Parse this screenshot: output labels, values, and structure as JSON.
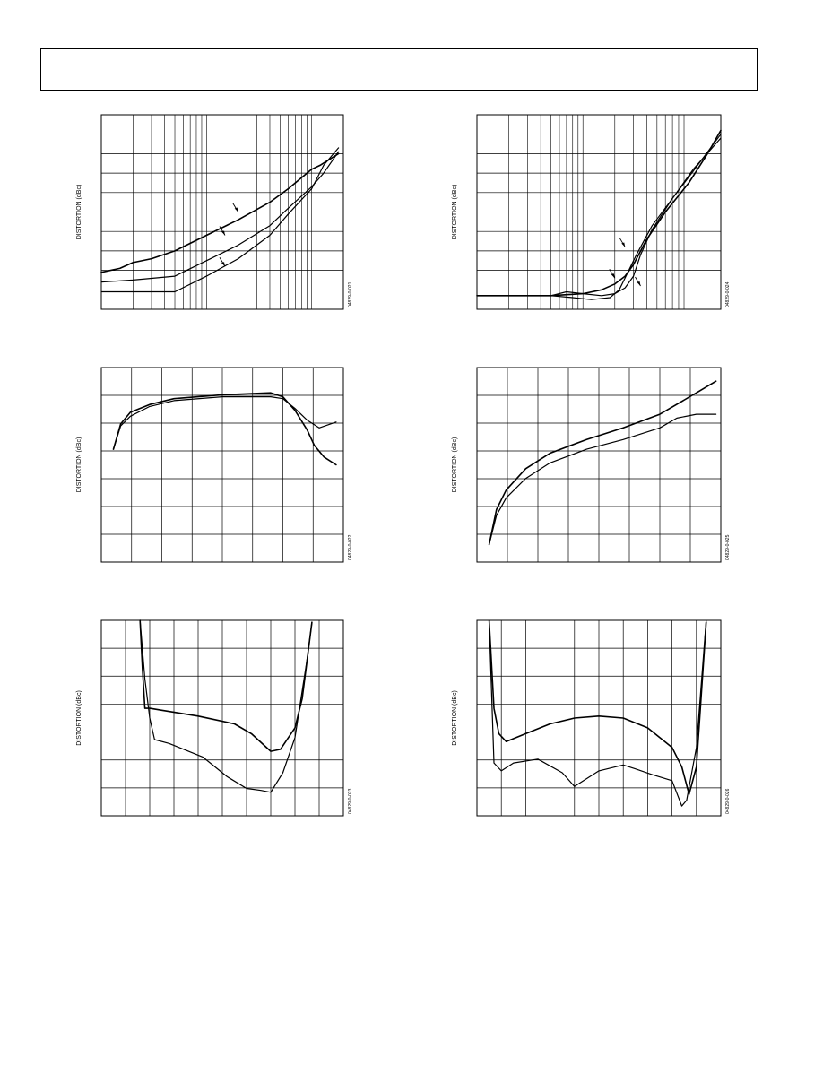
{
  "page": {
    "header_title": ""
  },
  "chart_data": [
    {
      "type": "line",
      "xscale": "log",
      "ylabel": "DISTORTION (dBc)",
      "figure_code": "04829-0-021",
      "grid": true,
      "series": [
        {
          "x": [
            1,
            1.5,
            2,
            3,
            5,
            10,
            20,
            40,
            60,
            100,
            120,
            180
          ],
          "y": [
            0.19,
            0.21,
            0.24,
            0.26,
            0.3,
            0.38,
            0.46,
            0.55,
            0.62,
            0.72,
            0.74,
            0.8
          ]
        },
        {
          "x": [
            1,
            2,
            5,
            10,
            20,
            40,
            60,
            100,
            130,
            180
          ],
          "y": [
            0.14,
            0.15,
            0.17,
            0.25,
            0.33,
            0.43,
            0.52,
            0.63,
            0.7,
            0.81
          ]
        },
        {
          "x": [
            1,
            2,
            5,
            10,
            20,
            40,
            60,
            100,
            130,
            180
          ],
          "y": [
            0.09,
            0.09,
            0.09,
            0.17,
            0.26,
            0.38,
            0.49,
            0.62,
            0.74,
            0.83
          ]
        }
      ],
      "annotations": [
        {
          "x": 20,
          "y": 0.5
        },
        {
          "x": 15,
          "y": 0.38
        },
        {
          "x": 15,
          "y": 0.22
        }
      ]
    },
    {
      "type": "line",
      "ylabel": "DISTORTION (dBc)",
      "figure_code": "04829-0-022",
      "grid": true,
      "series": [
        {
          "x": [
            0.05,
            0.08,
            0.12,
            0.2,
            0.3,
            0.5,
            0.7,
            0.75,
            0.8,
            0.85,
            0.88,
            0.92,
            0.97
          ],
          "y": [
            0.58,
            0.71,
            0.77,
            0.81,
            0.84,
            0.86,
            0.87,
            0.85,
            0.78,
            0.68,
            0.6,
            0.54,
            0.5
          ]
        },
        {
          "x": [
            0.05,
            0.08,
            0.12,
            0.2,
            0.3,
            0.5,
            0.7,
            0.75,
            0.8,
            0.85,
            0.9,
            0.97
          ],
          "y": [
            0.58,
            0.7,
            0.75,
            0.8,
            0.83,
            0.85,
            0.85,
            0.84,
            0.79,
            0.73,
            0.69,
            0.72
          ]
        }
      ]
    },
    {
      "type": "line",
      "ylabel": "DISTORTION (dBc)",
      "figure_code": "04829-0-023",
      "grid": true,
      "series": [
        {
          "x": [
            0.16,
            0.17,
            0.18,
            0.2,
            0.25,
            0.4,
            0.55,
            0.62,
            0.7,
            0.74,
            0.8,
            0.83,
            0.87
          ],
          "y": [
            1.0,
            0.75,
            0.55,
            0.55,
            0.54,
            0.51,
            0.47,
            0.42,
            0.33,
            0.34,
            0.45,
            0.6,
            0.99
          ]
        },
        {
          "x": [
            0.16,
            0.18,
            0.2,
            0.22,
            0.28,
            0.42,
            0.52,
            0.6,
            0.66,
            0.7,
            0.75,
            0.8,
            0.85,
            0.87
          ],
          "y": [
            1.0,
            0.7,
            0.5,
            0.39,
            0.37,
            0.3,
            0.2,
            0.14,
            0.13,
            0.12,
            0.22,
            0.4,
            0.8,
            0.99
          ]
        }
      ]
    },
    {
      "type": "line",
      "xscale": "log",
      "ylabel": "DISTORTION (dBc)",
      "figure_code": "04829-0-024",
      "grid": true,
      "series": [
        {
          "x": [
            1,
            5,
            10,
            15,
            20,
            25,
            30,
            40,
            60,
            100,
            150,
            200
          ],
          "y": [
            0.07,
            0.07,
            0.08,
            0.1,
            0.13,
            0.17,
            0.23,
            0.36,
            0.5,
            0.65,
            0.8,
            0.92
          ]
        },
        {
          "x": [
            1,
            5,
            8,
            12,
            18,
            22,
            26,
            32,
            45,
            70,
            110,
            200
          ],
          "y": [
            0.07,
            0.07,
            0.06,
            0.05,
            0.06,
            0.1,
            0.18,
            0.28,
            0.43,
            0.57,
            0.71,
            0.9
          ]
        },
        {
          "x": [
            1,
            5,
            7,
            10,
            15,
            20,
            25,
            30,
            35,
            45,
            70,
            110,
            200
          ],
          "y": [
            0.07,
            0.07,
            0.09,
            0.08,
            0.07,
            0.08,
            0.11,
            0.17,
            0.28,
            0.41,
            0.57,
            0.72,
            0.88
          ]
        }
      ],
      "annotations": [
        {
          "x": 25,
          "y": 0.32
        },
        {
          "x": 20,
          "y": 0.16
        },
        {
          "x": 35,
          "y": 0.12
        }
      ]
    },
    {
      "type": "line",
      "ylabel": "DISTORTION (dBc)",
      "figure_code": "04829-0-025",
      "grid": true,
      "series": [
        {
          "x": [
            0.05,
            0.08,
            0.12,
            0.2,
            0.3,
            0.45,
            0.6,
            0.75,
            0.9,
            0.98
          ],
          "y": [
            0.09,
            0.27,
            0.37,
            0.48,
            0.56,
            0.63,
            0.69,
            0.76,
            0.87,
            0.93
          ]
        },
        {
          "x": [
            0.05,
            0.08,
            0.12,
            0.2,
            0.3,
            0.45,
            0.6,
            0.75,
            0.82,
            0.9,
            0.98
          ],
          "y": [
            0.09,
            0.24,
            0.33,
            0.43,
            0.51,
            0.58,
            0.63,
            0.69,
            0.74,
            0.76,
            0.76
          ]
        }
      ]
    },
    {
      "type": "line",
      "ylabel": "DISTORTION (dBc)",
      "figure_code": "04829-0-026",
      "grid": true,
      "series": [
        {
          "x": [
            0.05,
            0.07,
            0.09,
            0.12,
            0.2,
            0.3,
            0.4,
            0.5,
            0.6,
            0.7,
            0.8,
            0.84,
            0.87,
            0.9,
            0.94
          ],
          "y": [
            1.0,
            0.55,
            0.42,
            0.38,
            0.42,
            0.47,
            0.5,
            0.51,
            0.5,
            0.45,
            0.35,
            0.25,
            0.11,
            0.25,
            0.99
          ]
        },
        {
          "x": [
            0.05,
            0.07,
            0.1,
            0.15,
            0.25,
            0.35,
            0.4,
            0.5,
            0.6,
            0.65,
            0.72,
            0.8,
            0.84,
            0.86,
            0.9,
            0.94
          ],
          "y": [
            1.0,
            0.27,
            0.23,
            0.27,
            0.29,
            0.22,
            0.15,
            0.23,
            0.26,
            0.24,
            0.21,
            0.18,
            0.05,
            0.08,
            0.35,
            1.0
          ]
        }
      ]
    }
  ]
}
